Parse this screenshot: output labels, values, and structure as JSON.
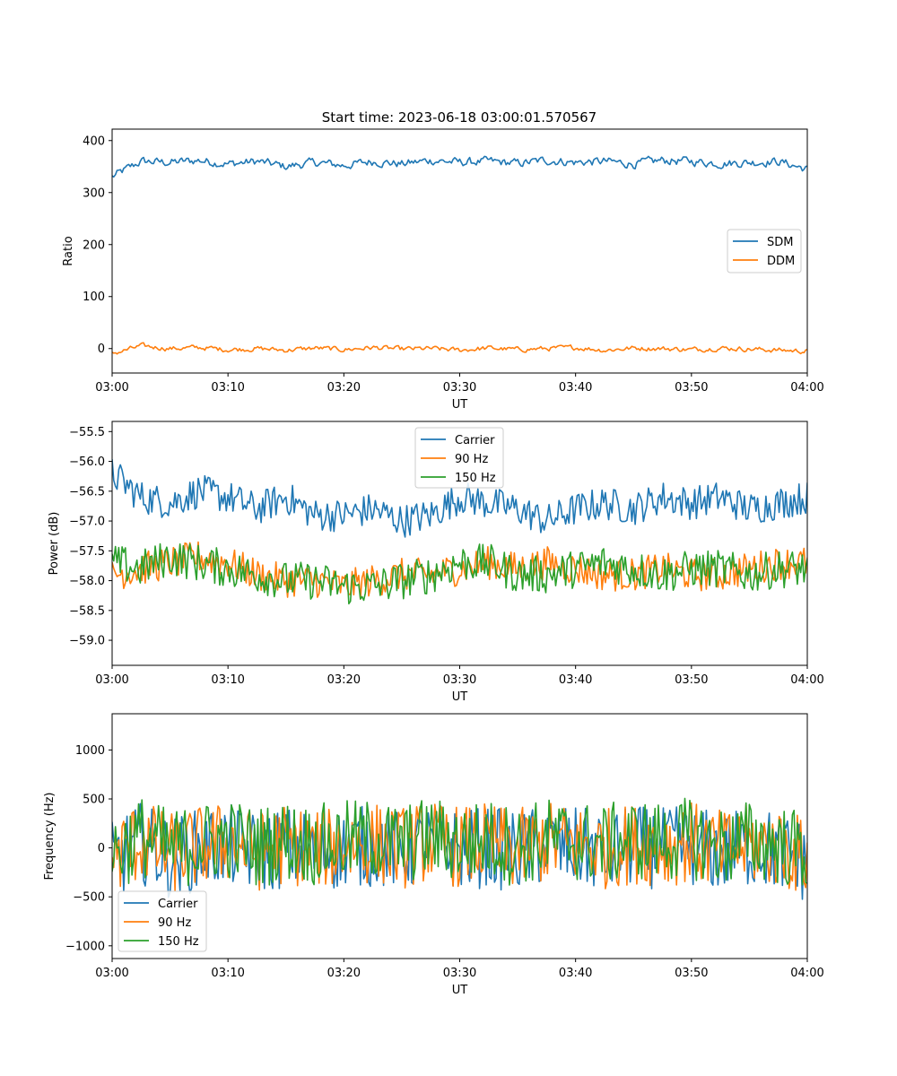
{
  "figure": {
    "title": "Start time: 2023-06-18 03:00:01.570567"
  },
  "chart_data": [
    {
      "type": "line",
      "xlabel": "UT",
      "ylabel": "Ratio",
      "x_ticks": [
        "03:00",
        "03:10",
        "03:20",
        "03:30",
        "03:40",
        "03:50",
        "04:00"
      ],
      "xlim_minutes": [
        0,
        60
      ],
      "ylim": [
        -47,
        422
      ],
      "y_ticks": [
        0,
        100,
        200,
        300,
        400
      ],
      "y_tick_labels": [
        "0",
        "100",
        "200",
        "300",
        "400"
      ],
      "legend": {
        "placement": "center-right",
        "entries": [
          "SDM",
          "DDM"
        ]
      },
      "series": [
        {
          "name": "SDM",
          "color": "#1f77b4",
          "x_minutes": [
            0,
            2.5,
            5,
            7.5,
            10,
            12.5,
            15,
            17.5,
            20,
            22.5,
            25,
            27.5,
            30,
            32.5,
            35,
            37.5,
            40,
            42.5,
            45,
            47.5,
            50,
            52.5,
            55,
            57.5,
            60
          ],
          "values": [
            330,
            360,
            358,
            362,
            355,
            360,
            350,
            358,
            352,
            360,
            355,
            362,
            358,
            360,
            356,
            362,
            358,
            360,
            355,
            362,
            360,
            356,
            358,
            360,
            345
          ]
        },
        {
          "name": "DDM",
          "color": "#ff7f0e",
          "x_minutes": [
            0,
            2.5,
            5,
            7.5,
            10,
            12.5,
            15,
            17.5,
            20,
            22.5,
            25,
            27.5,
            30,
            32.5,
            35,
            37.5,
            40,
            42.5,
            45,
            47.5,
            50,
            52.5,
            55,
            57.5,
            60
          ],
          "values": [
            -10,
            5,
            0,
            2,
            -2,
            0,
            -3,
            1,
            -2,
            2,
            -1,
            0,
            -3,
            1,
            -2,
            0,
            2,
            -3,
            1,
            0,
            -2,
            1,
            -1,
            -3,
            -5
          ]
        }
      ]
    },
    {
      "type": "line",
      "xlabel": "UT",
      "ylabel": "Power (dB)",
      "x_ticks": [
        "03:00",
        "03:10",
        "03:20",
        "03:30",
        "03:40",
        "03:50",
        "04:00"
      ],
      "xlim_minutes": [
        0,
        60
      ],
      "ylim": [
        -59.42,
        -55.33
      ],
      "y_ticks": [
        -59.0,
        -58.5,
        -58.0,
        -57.5,
        -57.0,
        -56.5,
        -56.0,
        -55.5
      ],
      "y_tick_labels": [
        "−59.0",
        "−58.5",
        "−58.0",
        "−57.5",
        "−57.0",
        "−56.5",
        "−56.0",
        "−55.5"
      ],
      "legend": {
        "placement": "upper-center",
        "entries": [
          "Carrier",
          "90 Hz",
          "150 Hz"
        ]
      },
      "series": [
        {
          "name": "Carrier",
          "color": "#1f77b4",
          "x_minutes": [
            0,
            2.5,
            5,
            7.5,
            10,
            12.5,
            15,
            17.5,
            20,
            22.5,
            25,
            27.5,
            30,
            32.5,
            35,
            37.5,
            40,
            42.5,
            45,
            47.5,
            50,
            52.5,
            55,
            57.5,
            60
          ],
          "values": [
            -56.2,
            -56.6,
            -56.7,
            -56.5,
            -56.6,
            -56.8,
            -56.6,
            -56.9,
            -56.9,
            -56.8,
            -57.0,
            -56.9,
            -56.6,
            -56.7,
            -56.8,
            -57.0,
            -56.8,
            -56.7,
            -56.8,
            -56.6,
            -56.7,
            -56.6,
            -56.8,
            -56.7,
            -56.6
          ]
        },
        {
          "name": "90 Hz",
          "color": "#ff7f0e",
          "x_minutes": [
            0,
            2.5,
            5,
            7.5,
            10,
            12.5,
            15,
            17.5,
            20,
            22.5,
            25,
            27.5,
            30,
            32.5,
            35,
            37.5,
            40,
            42.5,
            45,
            47.5,
            50,
            52.5,
            55,
            57.5,
            60
          ],
          "values": [
            -57.9,
            -57.8,
            -57.7,
            -57.6,
            -57.7,
            -57.9,
            -58.0,
            -58.0,
            -58.1,
            -58.0,
            -57.9,
            -57.9,
            -57.8,
            -57.7,
            -57.8,
            -57.7,
            -57.8,
            -57.9,
            -57.9,
            -57.8,
            -57.9,
            -57.9,
            -57.8,
            -57.7,
            -57.7
          ]
        },
        {
          "name": "150 Hz",
          "color": "#2ca02c",
          "x_minutes": [
            0,
            2.5,
            5,
            7.5,
            10,
            12.5,
            15,
            17.5,
            20,
            22.5,
            25,
            27.5,
            30,
            32.5,
            35,
            37.5,
            40,
            42.5,
            45,
            47.5,
            50,
            52.5,
            55,
            57.5,
            60
          ],
          "values": [
            -57.7,
            -57.8,
            -57.6,
            -57.7,
            -57.8,
            -57.9,
            -58.0,
            -58.0,
            -58.1,
            -58.1,
            -58.0,
            -57.9,
            -57.7,
            -57.7,
            -57.9,
            -57.9,
            -57.8,
            -57.7,
            -57.8,
            -57.9,
            -57.8,
            -57.8,
            -57.9,
            -57.8,
            -57.8
          ]
        }
      ]
    },
    {
      "type": "line",
      "xlabel": "UT",
      "ylabel": "Frequency (Hz)",
      "x_ticks": [
        "03:00",
        "03:10",
        "03:20",
        "03:30",
        "03:40",
        "03:50",
        "04:00"
      ],
      "xlim_minutes": [
        0,
        60
      ],
      "ylim": [
        -1130,
        1370
      ],
      "y_ticks": [
        -1000,
        -500,
        0,
        500,
        1000
      ],
      "y_tick_labels": [
        "−1000",
        "−500",
        "0",
        "500",
        "1000"
      ],
      "legend": {
        "placement": "lower-left",
        "entries": [
          "Carrier",
          "90 Hz",
          "150 Hz"
        ]
      },
      "series": [
        {
          "name": "Carrier",
          "color": "#1f77b4",
          "x_minutes": [
            0,
            2.5,
            5,
            7.5,
            10,
            12.5,
            15,
            17.5,
            20,
            22.5,
            25,
            27.5,
            30,
            32.5,
            35,
            37.5,
            40,
            42.5,
            45,
            47.5,
            50,
            52.5,
            55,
            57.5,
            60
          ],
          "values": [
            -150,
            50,
            -100,
            -20,
            30,
            -60,
            10,
            -40,
            0,
            20,
            -30,
            40,
            -20,
            10,
            -50,
            30,
            0,
            -40,
            20,
            -10,
            30,
            -60,
            10,
            -30,
            -150
          ]
        },
        {
          "name": "90 Hz",
          "color": "#ff7f0e",
          "x_minutes": [
            0,
            2.5,
            5,
            7.5,
            10,
            12.5,
            15,
            17.5,
            20,
            22.5,
            25,
            27.5,
            30,
            32.5,
            35,
            37.5,
            40,
            42.5,
            45,
            47.5,
            50,
            52.5,
            55,
            57.5,
            60
          ],
          "values": [
            -100,
            80,
            -60,
            10,
            60,
            -30,
            40,
            -10,
            30,
            50,
            0,
            70,
            10,
            40,
            -20,
            60,
            30,
            -10,
            50,
            20,
            60,
            -30,
            40,
            0,
            -100
          ]
        },
        {
          "name": "150 Hz",
          "color": "#2ca02c",
          "x_minutes": [
            0,
            2.5,
            5,
            7.5,
            10,
            12.5,
            15,
            17.5,
            20,
            22.5,
            25,
            27.5,
            30,
            32.5,
            35,
            37.5,
            40,
            42.5,
            45,
            47.5,
            50,
            52.5,
            55,
            57.5,
            60
          ],
          "values": [
            -50,
            120,
            -20,
            50,
            100,
            10,
            80,
            30,
            70,
            90,
            40,
            110,
            50,
            80,
            20,
            100,
            70,
            30,
            90,
            60,
            100,
            10,
            80,
            40,
            -50
          ]
        }
      ]
    }
  ]
}
